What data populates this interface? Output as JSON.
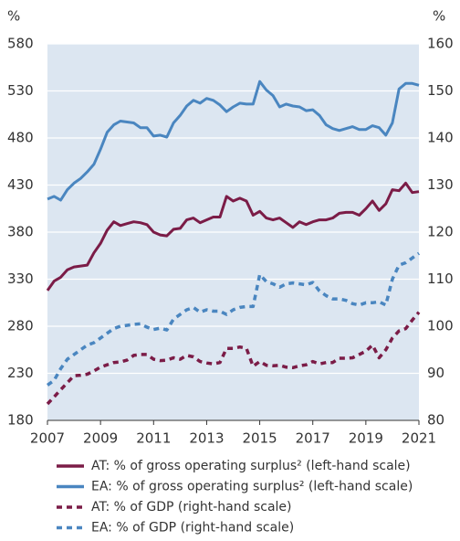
{
  "chart_data": {
    "type": "line",
    "y_label": "%",
    "y2_label": "%",
    "x": [
      2007,
      2007.25,
      2007.5,
      2007.75,
      2008,
      2008.25,
      2008.5,
      2008.75,
      2009,
      2009.25,
      2009.5,
      2009.75,
      2010,
      2010.25,
      2010.5,
      2010.75,
      2011,
      2011.25,
      2011.5,
      2011.75,
      2012,
      2012.25,
      2012.5,
      2012.75,
      2013,
      2013.25,
      2013.5,
      2013.75,
      2014,
      2014.25,
      2014.5,
      2014.75,
      2015,
      2015.25,
      2015.5,
      2015.75,
      2016,
      2016.25,
      2016.5,
      2016.75,
      2017,
      2017.25,
      2017.5,
      2017.75,
      2018,
      2018.25,
      2018.5,
      2018.75,
      2019,
      2019.25,
      2019.5,
      2019.75,
      2020,
      2020.25,
      2020.5,
      2020.75,
      2021
    ],
    "xlim": [
      2007,
      2021
    ],
    "xticks": [
      2007,
      2009,
      2011,
      2013,
      2015,
      2017,
      2019,
      2021
    ],
    "ylim": [
      180,
      580
    ],
    "yticks": [
      180,
      230,
      280,
      330,
      380,
      430,
      480,
      530,
      580
    ],
    "y2lim": [
      80,
      160
    ],
    "y2ticks": [
      80,
      90,
      100,
      110,
      120,
      130,
      140,
      150,
      160
    ],
    "grid": true,
    "series": [
      {
        "name": "AT: % of gross operating surplus² (left-hand scale)",
        "color": "#7b1c47",
        "dashed": false,
        "values": [
          318,
          328,
          332,
          340,
          343,
          344,
          345,
          358,
          368,
          382,
          391,
          387,
          389,
          391,
          390,
          388,
          380,
          377,
          376,
          383,
          384,
          393,
          395,
          390,
          393,
          396,
          396,
          418,
          413,
          416,
          413,
          398,
          402,
          395,
          393,
          395,
          390,
          385,
          391,
          388,
          391,
          393,
          393,
          395,
          400,
          401,
          401,
          398,
          405,
          413,
          403,
          410,
          425,
          424,
          432,
          422,
          423
        ]
      },
      {
        "name": "EA: % of gross operating surplus² (left-hand scale)",
        "color": "#4a86c0",
        "dashed": false,
        "values": [
          415,
          418,
          414,
          425,
          432,
          437,
          444,
          452,
          468,
          486,
          494,
          498,
          497,
          496,
          491,
          491,
          482,
          483,
          481,
          496,
          504,
          514,
          520,
          517,
          522,
          520,
          515,
          508,
          513,
          517,
          516,
          516,
          540,
          531,
          525,
          513,
          516,
          514,
          513,
          509,
          510,
          504,
          494,
          490,
          488,
          490,
          492,
          489,
          489,
          493,
          491,
          483,
          496,
          532,
          538,
          538,
          536
        ]
      },
      {
        "name": "AT: % of GDP (right-hand scale)",
        "color": "#7b1c47",
        "dashed": true,
        "axis": "y2",
        "values": [
          83.5,
          85,
          86.5,
          88,
          89.5,
          89.6,
          89.8,
          90.5,
          91.3,
          91.8,
          92.3,
          92.4,
          92.8,
          93.8,
          94,
          94,
          93,
          92.7,
          92.8,
          93.3,
          93,
          93.8,
          93.5,
          92.5,
          92.2,
          92,
          92.3,
          95.3,
          95.3,
          95.6,
          95.3,
          91.5,
          92.5,
          91.7,
          91.6,
          91.7,
          91.3,
          91.2,
          91.6,
          91.8,
          92.5,
          92,
          92.3,
          92.3,
          93.2,
          93.2,
          93.3,
          94,
          94.7,
          96,
          93.3,
          95,
          97.5,
          99,
          99.5,
          101.3,
          103
        ]
      },
      {
        "name": "EA: % of GDP (right-hand scale)",
        "color": "#4a86c0",
        "dashed": true,
        "axis": "y2",
        "values": [
          87.5,
          88.5,
          91,
          93,
          94,
          95,
          96,
          96.5,
          97.5,
          98.5,
          99.5,
          100,
          100.2,
          100.4,
          100.5,
          99.8,
          99.3,
          99.6,
          99.2,
          101.5,
          102.5,
          103.5,
          104,
          103,
          103.5,
          103.2,
          103.2,
          102.5,
          103.5,
          104,
          104.2,
          104.2,
          111,
          109.5,
          109,
          108.3,
          109,
          109.2,
          109,
          108.8,
          109.3,
          107.5,
          106.5,
          105.8,
          105.8,
          105.5,
          104.8,
          104.5,
          105,
          105,
          105.2,
          104.5,
          110,
          113,
          113.5,
          114.5,
          115.5
        ]
      }
    ]
  }
}
